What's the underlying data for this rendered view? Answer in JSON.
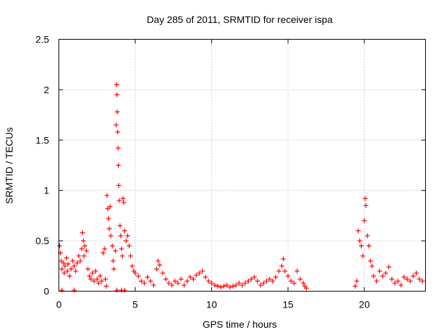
{
  "chart_data": {
    "type": "scatter",
    "title": "Day 285 of 2011, SRMTID for receiver ispa",
    "xlabel": "GPS time / hours",
    "ylabel": "SRMTID / TECUs",
    "xlim": [
      0,
      24
    ],
    "ylim": [
      0,
      2.5
    ],
    "xticks": [
      0,
      5,
      10,
      15,
      20
    ],
    "yticks": [
      0,
      0.5,
      1,
      1.5,
      2,
      2.5
    ],
    "xtick_labels": [
      "0",
      "5",
      "10",
      "15",
      "20"
    ],
    "ytick_labels": [
      "0",
      "0.5",
      "1",
      "1.5",
      "2",
      "2.5"
    ],
    "grid": true,
    "marker": "+",
    "color": "#ff0000",
    "series": [
      {
        "name": "SRMTID",
        "points": [
          [
            0.05,
            0.45
          ],
          [
            0.1,
            0.38
          ],
          [
            0.15,
            0.3
          ],
          [
            0.2,
            0.22
          ],
          [
            0.3,
            0.28
          ],
          [
            0.35,
            0.18
          ],
          [
            0.4,
            0.25
          ],
          [
            0.5,
            0.33
          ],
          [
            0.55,
            0.2
          ],
          [
            0.6,
            0.27
          ],
          [
            0.7,
            0.15
          ],
          [
            0.8,
            0.22
          ],
          [
            0.9,
            0.3
          ],
          [
            1.0,
            0.25
          ],
          [
            1.1,
            0.2
          ],
          [
            1.2,
            0.28
          ],
          [
            1.3,
            0.35
          ],
          [
            1.4,
            0.3
          ],
          [
            1.5,
            0.42
          ],
          [
            1.55,
            0.58
          ],
          [
            1.6,
            0.5
          ],
          [
            1.65,
            0.35
          ],
          [
            1.7,
            0.45
          ],
          [
            1.8,
            0.4
          ],
          [
            1.9,
            0.22
          ],
          [
            2.0,
            0.15
          ],
          [
            2.1,
            0.12
          ],
          [
            2.2,
            0.18
          ],
          [
            2.3,
            0.1
          ],
          [
            2.4,
            0.2
          ],
          [
            2.5,
            0.12
          ],
          [
            2.6,
            0.08
          ],
          [
            2.7,
            0.15
          ],
          [
            2.8,
            0.1
          ],
          [
            2.9,
            0.38
          ],
          [
            3.0,
            0.42
          ],
          [
            3.05,
            0.12
          ],
          [
            3.1,
            0.05
          ],
          [
            3.15,
            0.95
          ],
          [
            3.2,
            0.82
          ],
          [
            3.25,
            0.72
          ],
          [
            3.3,
            0.62
          ],
          [
            3.35,
            0.84
          ],
          [
            3.4,
            0.55
          ],
          [
            3.5,
            0.45
          ],
          [
            3.55,
            0.3
          ],
          [
            3.6,
            0.22
          ],
          [
            3.7,
            0.4
          ],
          [
            3.75,
            1.65
          ],
          [
            3.78,
            2.05
          ],
          [
            3.8,
            1.95
          ],
          [
            3.82,
            1.78
          ],
          [
            3.85,
            1.58
          ],
          [
            3.88,
            1.42
          ],
          [
            3.9,
            1.25
          ],
          [
            3.92,
            1.05
          ],
          [
            3.95,
            0.9
          ],
          [
            4.0,
            0.65
          ],
          [
            4.05,
            0.55
          ],
          [
            4.1,
            0.42
          ],
          [
            4.15,
            0.35
          ],
          [
            4.2,
            0.92
          ],
          [
            4.25,
            0.88
          ],
          [
            4.3,
            0.6
          ],
          [
            4.4,
            0.5
          ],
          [
            4.5,
            0.55
          ],
          [
            4.6,
            0.45
          ],
          [
            4.7,
            0.35
          ],
          [
            4.8,
            0.25
          ],
          [
            4.9,
            0.2
          ],
          [
            5.0,
            0.18
          ],
          [
            5.2,
            0.15
          ],
          [
            5.4,
            0.1
          ],
          [
            5.6,
            0.08
          ],
          [
            5.8,
            0.14
          ],
          [
            6.0,
            0.1
          ],
          [
            6.2,
            0.06
          ],
          [
            6.4,
            0.22
          ],
          [
            6.5,
            0.3
          ],
          [
            6.6,
            0.26
          ],
          [
            6.8,
            0.18
          ],
          [
            7.0,
            0.12
          ],
          [
            7.2,
            0.08
          ],
          [
            7.4,
            0.06
          ],
          [
            7.6,
            0.1
          ],
          [
            7.8,
            0.08
          ],
          [
            8.0,
            0.12
          ],
          [
            8.2,
            0.06
          ],
          [
            8.4,
            0.1
          ],
          [
            8.6,
            0.14
          ],
          [
            8.8,
            0.12
          ],
          [
            9.0,
            0.16
          ],
          [
            9.2,
            0.18
          ],
          [
            9.4,
            0.2
          ],
          [
            9.6,
            0.14
          ],
          [
            9.8,
            0.1
          ],
          [
            10.0,
            0.08
          ],
          [
            10.2,
            0.06
          ],
          [
            10.4,
            0.05
          ],
          [
            10.6,
            0.04
          ],
          [
            10.8,
            0.05
          ],
          [
            11.0,
            0.06
          ],
          [
            11.2,
            0.04
          ],
          [
            11.4,
            0.05
          ],
          [
            11.6,
            0.06
          ],
          [
            11.8,
            0.08
          ],
          [
            12.0,
            0.06
          ],
          [
            12.2,
            0.08
          ],
          [
            12.4,
            0.1
          ],
          [
            12.6,
            0.12
          ],
          [
            12.8,
            0.14
          ],
          [
            13.0,
            0.1
          ],
          [
            13.2,
            0.06
          ],
          [
            13.4,
            0.08
          ],
          [
            13.6,
            0.1
          ],
          [
            13.8,
            0.12
          ],
          [
            14.0,
            0.1
          ],
          [
            14.2,
            0.14
          ],
          [
            14.4,
            0.2
          ],
          [
            14.6,
            0.25
          ],
          [
            14.7,
            0.32
          ],
          [
            14.8,
            0.2
          ],
          [
            15.0,
            0.15
          ],
          [
            15.2,
            0.1
          ],
          [
            15.4,
            0.08
          ],
          [
            15.6,
            0.2
          ],
          [
            15.8,
            0.12
          ],
          [
            16.0,
            0.08
          ],
          [
            16.1,
            0.05
          ],
          [
            16.2,
            0.03
          ],
          [
            19.4,
            0.05
          ],
          [
            19.5,
            0.1
          ],
          [
            19.6,
            0.6
          ],
          [
            19.7,
            0.5
          ],
          [
            19.8,
            0.45
          ],
          [
            19.9,
            0.35
          ],
          [
            20.0,
            0.7
          ],
          [
            20.05,
            0.92
          ],
          [
            20.1,
            0.85
          ],
          [
            20.2,
            0.55
          ],
          [
            20.3,
            0.45
          ],
          [
            20.4,
            0.3
          ],
          [
            20.5,
            0.25
          ],
          [
            20.6,
            0.15
          ],
          [
            20.8,
            0.1
          ],
          [
            21.0,
            0.2
          ],
          [
            21.2,
            0.15
          ],
          [
            21.4,
            0.18
          ],
          [
            21.6,
            0.24
          ],
          [
            21.8,
            0.12
          ],
          [
            22.0,
            0.08
          ],
          [
            22.2,
            0.1
          ],
          [
            22.4,
            0.06
          ],
          [
            22.6,
            0.14
          ],
          [
            22.8,
            0.12
          ],
          [
            23.0,
            0.1
          ],
          [
            23.2,
            0.15
          ],
          [
            23.4,
            0.18
          ],
          [
            23.6,
            0.12
          ],
          [
            23.8,
            0.1
          ],
          [
            3.8,
            0.01
          ],
          [
            4.1,
            0.01
          ],
          [
            4.3,
            0.01
          ],
          [
            0.2,
            0.01
          ],
          [
            1.0,
            0.01
          ]
        ]
      }
    ]
  }
}
